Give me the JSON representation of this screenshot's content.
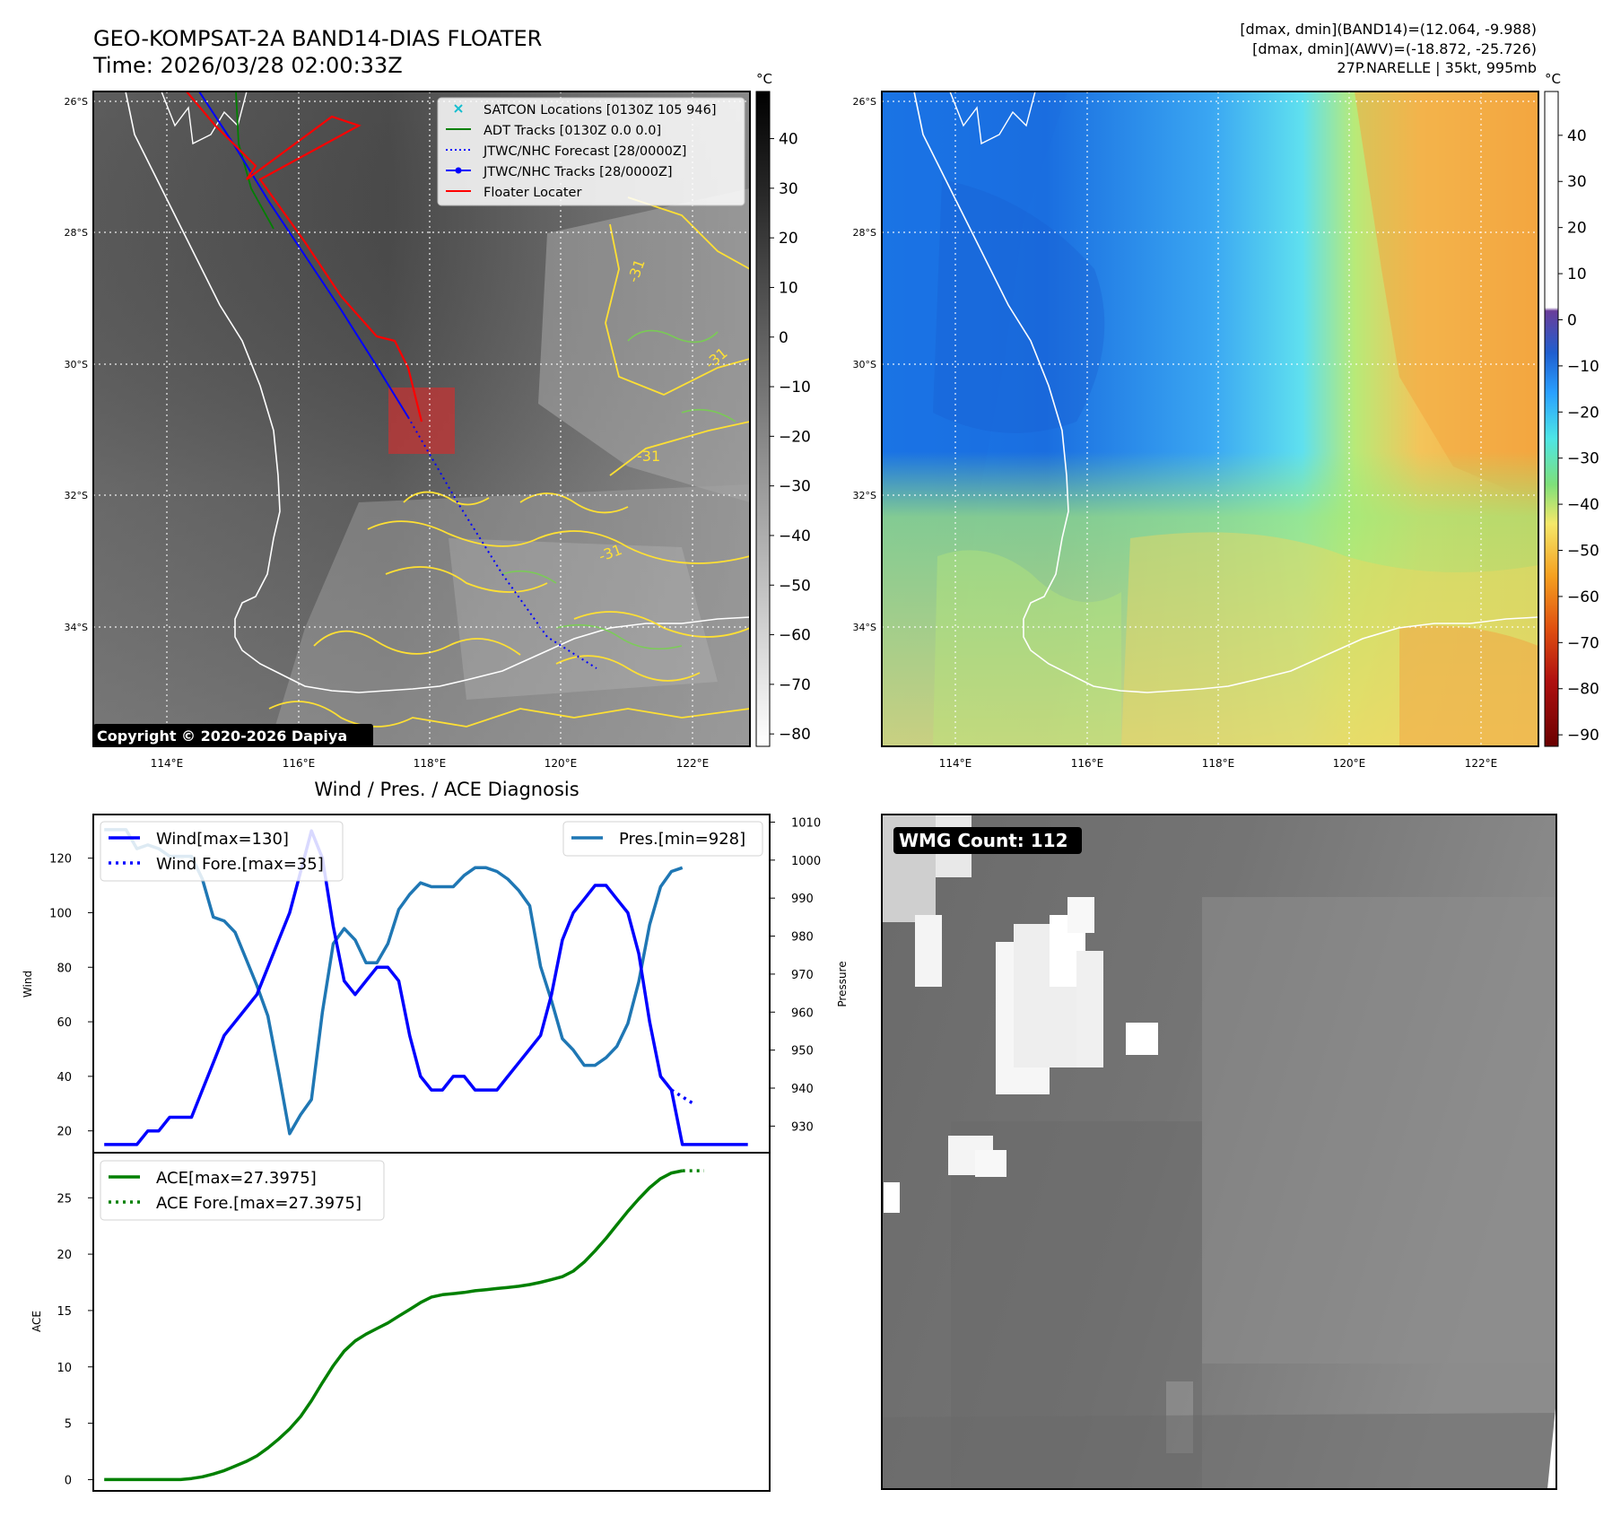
{
  "header": {
    "title_line1": "GEO-KOMPSAT-2A BAND14-DIAS FLOATER",
    "title_line2": "Time: 2026/03/28 02:00:33Z",
    "info_line1": "[dmax, dmin](BAND14)=(12.064, -9.988)",
    "info_line2": "[dmax, dmin](AWV)=(-18.872, -25.726)",
    "info_line3": "27P.NARELLE | 35kt, 995mb"
  },
  "map_panels": {
    "lat_labels": [
      "26°S",
      "28°S",
      "30°S",
      "32°S",
      "34°S"
    ],
    "lon_labels": [
      "114°E",
      "116°E",
      "118°E",
      "120°E",
      "122°E"
    ],
    "copyright": "Copyright © 2020-2026 Dapiya",
    "contour_label": "-31",
    "left_colorbar": {
      "unit": "°C",
      "ticks": [
        "40",
        "30",
        "20",
        "10",
        "0",
        "−10",
        "−20",
        "−30",
        "−40",
        "−50",
        "−60",
        "−70",
        "−80"
      ]
    },
    "right_colorbar": {
      "unit": "°C",
      "ticks": [
        "40",
        "30",
        "20",
        "10",
        "0",
        "−10",
        "−20",
        "−30",
        "−40",
        "−50",
        "−60",
        "−70",
        "−80",
        "−90"
      ]
    },
    "legend": [
      {
        "label": "SATCON Locations [0130Z 105 946]",
        "color": "#17becf",
        "marker": "x-icon"
      },
      {
        "label": "ADT Tracks [0130Z 0.0 0.0]",
        "color": "#008000",
        "marker": "line"
      },
      {
        "label": "JTWC/NHC Forecast [28/0000Z]",
        "color": "#0000ff",
        "marker": "dotted"
      },
      {
        "label": "JTWC/NHC Tracks [28/0000Z]",
        "color": "#0000ff",
        "marker": "dot-line"
      },
      {
        "label": "Floater Locater",
        "color": "#ff0000",
        "marker": "line"
      }
    ]
  },
  "wmg": {
    "label": "WMG Count: 112"
  },
  "chart_data": [
    {
      "type": "line",
      "title": "Wind / Pres. / ACE Diagnosis",
      "ylabel": "Wind",
      "ylabel_right": "Pressure",
      "ylim": [
        12,
        136
      ],
      "ylim_right": [
        923,
        1012
      ],
      "yticks": [
        20,
        40,
        60,
        80,
        100,
        120
      ],
      "yticks_right": [
        930,
        940,
        950,
        960,
        970,
        980,
        990,
        1000,
        1010
      ],
      "series": [
        {
          "name": "Wind[max=130]",
          "color": "#0000ff",
          "style": "solid",
          "x": [
            0,
            1,
            2,
            3,
            4,
            5,
            6,
            7,
            8,
            9,
            10,
            11,
            12,
            13,
            14,
            15,
            16,
            17,
            18,
            19,
            20,
            21,
            22,
            23,
            24,
            25,
            26,
            27,
            28,
            29,
            30,
            31,
            32,
            33,
            34,
            35,
            36,
            37,
            38,
            39,
            40,
            41,
            42,
            43,
            44,
            45,
            46,
            47,
            48,
            49,
            50,
            51,
            52,
            53,
            54,
            55,
            56,
            57,
            58,
            59
          ],
          "values": [
            15,
            15,
            15,
            15,
            20,
            20,
            25,
            25,
            25,
            35,
            45,
            55,
            60,
            65,
            70,
            80,
            90,
            100,
            115,
            130,
            120,
            95,
            75,
            70,
            75,
            80,
            80,
            75,
            55,
            40,
            35,
            35,
            40,
            40,
            35,
            35,
            35,
            40,
            45,
            50,
            55,
            70,
            90,
            100,
            105,
            110,
            110,
            105,
            100,
            85,
            60,
            40,
            35,
            15,
            15,
            15,
            15,
            15,
            15,
            15
          ]
        },
        {
          "name": "Wind Fore.[max=35]",
          "color": "#0000ff",
          "style": "dotted",
          "x": [
            52,
            54
          ],
          "values": [
            35,
            30
          ]
        },
        {
          "name": "Pres.[min=928]",
          "color": "#1f77b4",
          "style": "solid",
          "axis": "right",
          "x": [
            0,
            2,
            3,
            4,
            5,
            6,
            7,
            8,
            9,
            10,
            11,
            12,
            13,
            14,
            15,
            16,
            17,
            18,
            19,
            20,
            21,
            22,
            23,
            24,
            25,
            26,
            27,
            28,
            29,
            30,
            31,
            32,
            33,
            34,
            35,
            36,
            37,
            38,
            39,
            40,
            41,
            42,
            43,
            44,
            45,
            46,
            47,
            48,
            49,
            50,
            51,
            52,
            53
          ],
          "values": [
            1008,
            1008,
            1003,
            1004,
            1003,
            1001,
            1001,
            1001,
            995,
            985,
            984,
            981,
            974,
            967,
            959,
            944,
            928,
            933,
            937,
            960,
            978,
            982,
            979,
            973,
            973,
            978,
            987,
            991,
            994,
            993,
            993,
            993,
            996,
            998,
            998,
            997,
            995,
            992,
            988,
            972,
            963,
            953,
            950,
            946,
            946,
            948,
            951,
            957,
            968,
            983,
            993,
            997,
            998
          ]
        }
      ]
    },
    {
      "type": "line",
      "ylabel": "ACE",
      "ylim": [
        -1,
        29
      ],
      "yticks": [
        0,
        5,
        10,
        15,
        20,
        25
      ],
      "series": [
        {
          "name": "ACE[max=27.3975]",
          "color": "#008000",
          "style": "solid",
          "x": [
            0,
            1,
            2,
            3,
            4,
            5,
            6,
            7,
            8,
            9,
            10,
            11,
            12,
            13,
            14,
            15,
            16,
            17,
            18,
            19,
            20,
            21,
            22,
            23,
            24,
            25,
            26,
            27,
            28,
            29,
            30,
            31,
            32,
            33,
            34,
            35,
            36,
            37,
            38,
            39,
            40,
            41,
            42,
            43,
            44,
            45,
            46,
            47,
            48,
            49,
            50,
            51,
            52,
            53
          ],
          "values": [
            0,
            0,
            0,
            0,
            0,
            0,
            0,
            0,
            0.1,
            0.25,
            0.5,
            0.8,
            1.2,
            1.6,
            2.1,
            2.8,
            3.6,
            4.5,
            5.6,
            7.0,
            8.6,
            10.1,
            11.4,
            12.3,
            12.9,
            13.4,
            13.9,
            14.5,
            15.1,
            15.7,
            16.2,
            16.4,
            16.5,
            16.6,
            16.75,
            16.85,
            16.95,
            17.05,
            17.15,
            17.3,
            17.5,
            17.75,
            18.0,
            18.5,
            19.3,
            20.3,
            21.4,
            22.6,
            23.8,
            24.9,
            25.9,
            26.7,
            27.2,
            27.3975
          ]
        },
        {
          "name": "ACE Fore.[max=27.3975]",
          "color": "#008000",
          "style": "dotted",
          "x": [
            53,
            55
          ],
          "values": [
            27.4,
            27.4
          ]
        }
      ]
    }
  ]
}
